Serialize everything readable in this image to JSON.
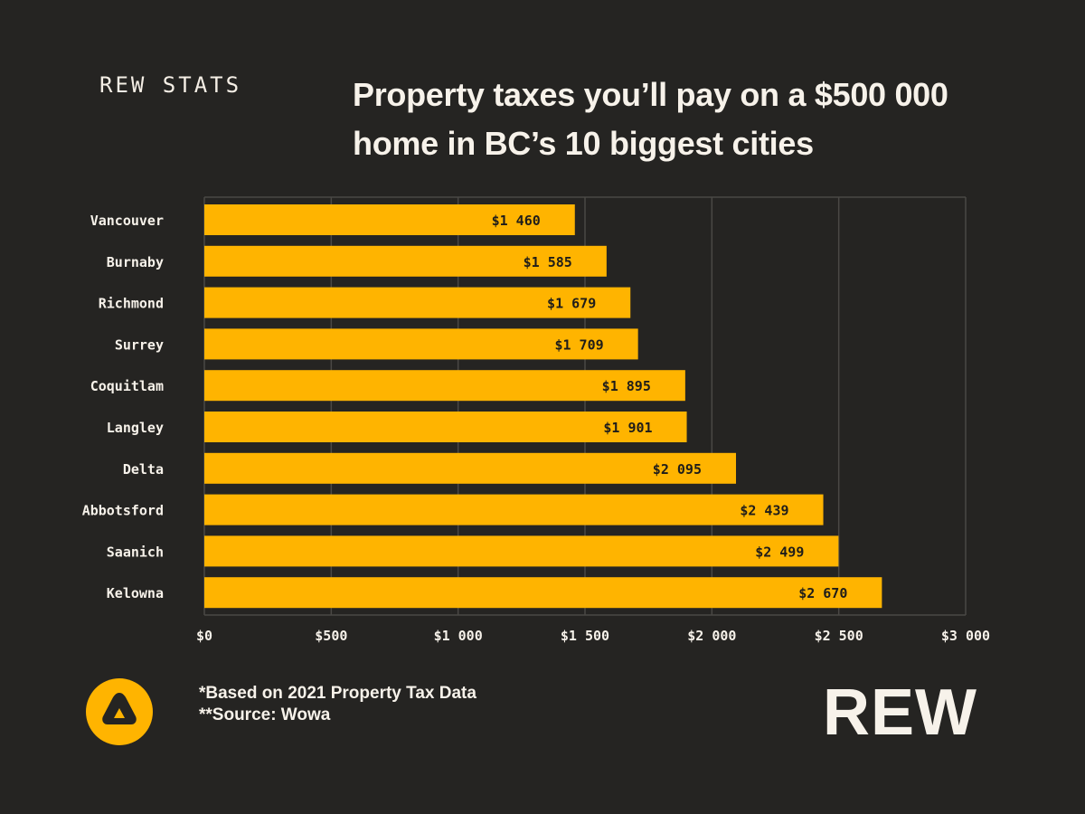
{
  "header": {
    "kicker": "REW STATS",
    "title": "Property taxes you’ll pay on a $500 000 home in BC’s 10 biggest cities"
  },
  "colors": {
    "background": "#252422",
    "bar": "#FFB400",
    "bar_label": "#1f1d1a",
    "text": "#f7f2ea",
    "grid": "#4a4845"
  },
  "chart_data": {
    "type": "bar",
    "orientation": "horizontal",
    "title": "Property taxes you’ll pay on a $500 000 home in BC’s 10 biggest cities",
    "categories": [
      "Vancouver",
      "Burnaby",
      "Richmond",
      "Surrey",
      "Coquitlam",
      "Langley",
      "Delta",
      "Abbotsford",
      "Saanich",
      "Kelowna"
    ],
    "values": [
      1460,
      1585,
      1679,
      1709,
      1895,
      1901,
      2095,
      2439,
      2499,
      2670
    ],
    "value_labels": [
      "$1 460",
      "$1 585",
      "$1 679",
      "$1 709",
      "$1 895",
      "$1 901",
      "$2 095",
      "$2 439",
      "$2 499",
      "$2 670"
    ],
    "xlim": [
      0,
      3000
    ],
    "xticks": [
      0,
      500,
      1000,
      1500,
      2000,
      2500,
      3000
    ],
    "xtick_labels": [
      "$0",
      "$500",
      "$1 000",
      "$1 500",
      "$2 000",
      "$2 500",
      "$3 000"
    ],
    "xlabel": "",
    "ylabel": "",
    "grid": true,
    "legend": false
  },
  "footer": {
    "note1": "*Based on 2021 Property Tax Data",
    "note2": "**Source: Wowa",
    "brand": "REW",
    "logo_icon": "rew-triangle-logo-icon"
  }
}
